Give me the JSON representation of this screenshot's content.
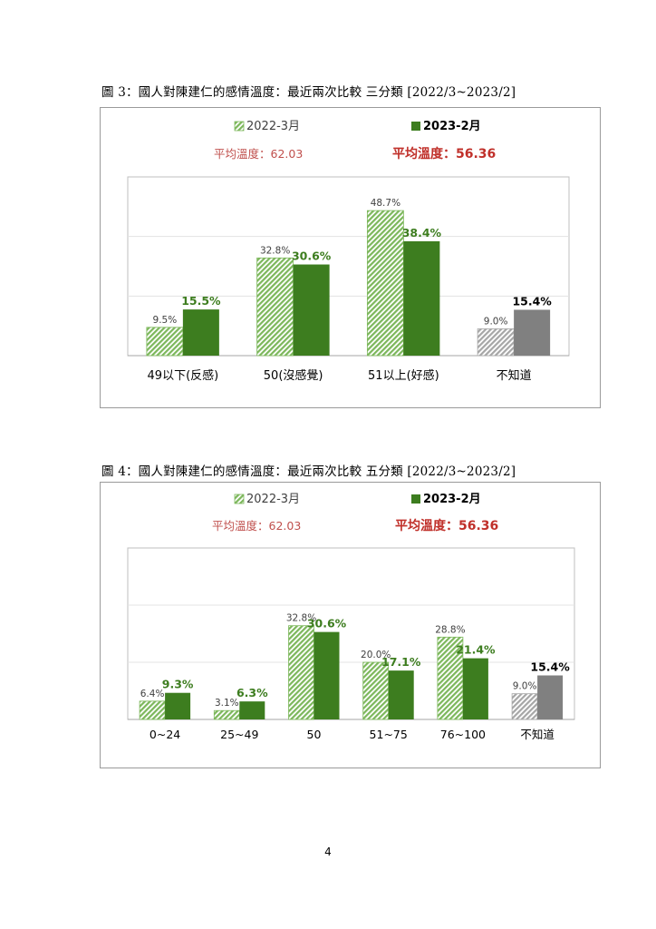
{
  "page_number": "4",
  "colors": {
    "light_green": "#7cb75b",
    "dark_green": "#3d7d1f",
    "light_gray": "#a6a6a6",
    "dark_gray": "#808080",
    "avg_prev_text": "#c0504d",
    "avg_curr_text": "#c0302a",
    "value_curr_text": "#3d7d1f"
  },
  "chart_data": [
    {
      "type": "bar",
      "caption": "圖 3：國人對陳建仁的感情溫度：最近兩次比較 三分類 [2022/3~2023/2]",
      "legend": [
        {
          "name": "2022-3月",
          "style": "hatched-light-green"
        },
        {
          "name": "2023-2月",
          "style": "solid-dark-green"
        }
      ],
      "averages": [
        "平均溫度：62.03",
        "平均溫度：56.36"
      ],
      "categories": [
        "49以下(反感)",
        "50(沒感覺)",
        "51以上(好感)",
        "不知道"
      ],
      "series": [
        {
          "name": "2022-3月",
          "values": [
            9.5,
            32.8,
            48.7,
            9.0
          ],
          "labels": [
            "9.5%",
            "32.8%",
            "48.7%",
            "9.0%"
          ]
        },
        {
          "name": "2023-2月",
          "values": [
            15.5,
            30.6,
            38.4,
            15.4
          ],
          "labels": [
            "15.5%",
            "30.6%",
            "38.4%",
            "15.4%"
          ]
        }
      ],
      "ylim": [
        0,
        60
      ],
      "grid": true,
      "legend_position": "top-center"
    },
    {
      "type": "bar",
      "caption": "圖 4：國人對陳建仁的感情溫度：最近兩次比較 五分類 [2022/3~2023/2]",
      "legend": [
        {
          "name": "2022-3月",
          "style": "hatched-light-green"
        },
        {
          "name": "2023-2月",
          "style": "solid-dark-green"
        }
      ],
      "averages": [
        "平均溫度：62.03",
        "平均溫度：56.36"
      ],
      "categories": [
        "0~24",
        "25~49",
        "50",
        "51~75",
        "76~100",
        "不知道"
      ],
      "series": [
        {
          "name": "2022-3月",
          "values": [
            6.4,
            3.1,
            32.8,
            20.0,
            28.8,
            9.0
          ],
          "labels": [
            "6.4%",
            "3.1%",
            "32.8%",
            "20.0%",
            "28.8%",
            "9.0%"
          ]
        },
        {
          "name": "2023-2月",
          "values": [
            9.3,
            6.3,
            30.6,
            17.1,
            21.4,
            15.4
          ],
          "labels": [
            "9.3%",
            "6.3%",
            "30.6%",
            "17.1%",
            "21.4%",
            "15.4%"
          ]
        }
      ],
      "ylim": [
        0,
        60
      ],
      "grid": true,
      "legend_position": "top-center"
    }
  ]
}
